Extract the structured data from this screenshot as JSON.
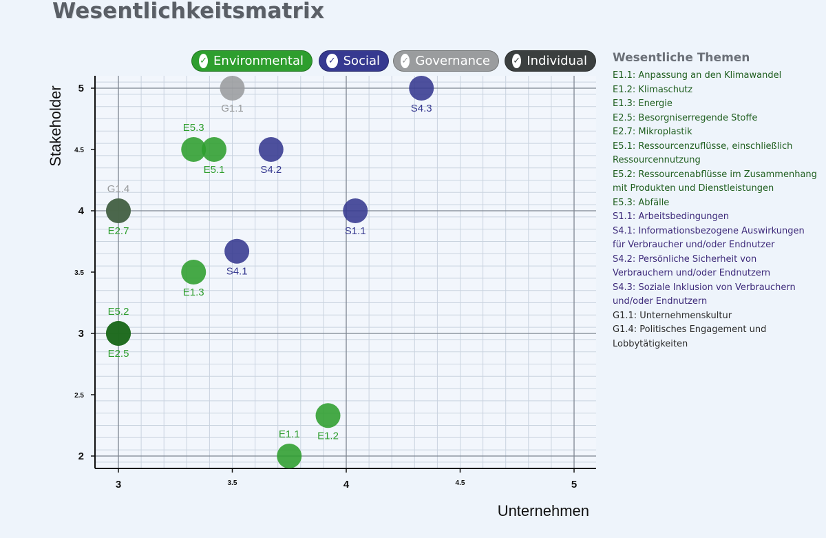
{
  "page": {
    "title": "Wesentlichkeitsmatrix"
  },
  "filters": [
    {
      "label": "Environmental",
      "color": "#2e9e2e",
      "checked": true
    },
    {
      "label": "Social",
      "color": "#363990",
      "checked": true
    },
    {
      "label": "Governance",
      "color": "#9a9c9e",
      "checked": true
    },
    {
      "label": "Individual",
      "color": "#3b3f3f",
      "checked": true
    }
  ],
  "side_legend": {
    "title": "Wesentliche Themen",
    "items": [
      {
        "text": "E1.1: Anpassung an den Klimawandel",
        "color": "#1f5e1f"
      },
      {
        "text": "E1.2: Klimaschutz",
        "color": "#1f5e1f"
      },
      {
        "text": "E1.3: Energie",
        "color": "#1f5e1f"
      },
      {
        "text": "E2.5: Besorgniserregende Stoffe",
        "color": "#1f5e1f"
      },
      {
        "text": "E2.7: Mikroplastik",
        "color": "#1f5e1f"
      },
      {
        "text": "E5.1: Ressourcenzuflüsse, einschließlich Ressourcennutzung",
        "color": "#1f5e1f"
      },
      {
        "text": "E5.2: Ressourcenabflüsse im Zusammenhang mit Produkten und Dienstleistungen",
        "color": "#1f5e1f"
      },
      {
        "text": "E5.3: Abfälle",
        "color": "#1f5e1f"
      },
      {
        "text": "S1.1: Arbeitsbedingungen",
        "color": "#3d2a7a"
      },
      {
        "text": "S4.1: Informationsbezogene Auswirkungen für Verbraucher und/oder Endnutzer",
        "color": "#3d2a7a"
      },
      {
        "text": "S4.2: Persönliche Sicherheit von Verbrauchern und/oder Endnutzern",
        "color": "#3d2a7a"
      },
      {
        "text": "S4.3: Soziale Inklusion von Verbrauchern und/oder Endnutzern",
        "color": "#3d2a7a"
      },
      {
        "text": "G1.1: Unternehmenskultur",
        "color": "#2b2b2b"
      },
      {
        "text": "G1.4: Politisches Engagement und Lobbytätigkeiten",
        "color": "#2b2b2b"
      }
    ]
  },
  "chart_data": {
    "type": "scatter",
    "title": "Wesentlichkeitsmatrix",
    "xlabel": "Unternehmen",
    "ylabel": "Stakeholder",
    "xlim": [
      2.9,
      5.1
    ],
    "ylim": [
      1.95,
      5.05
    ],
    "xticks": [
      {
        "value": 3,
        "label": "3",
        "major": true
      },
      {
        "value": 3.5,
        "label": "3.5",
        "major": false
      },
      {
        "value": 4,
        "label": "4",
        "major": true
      },
      {
        "value": 4.5,
        "label": "4.5",
        "major": false
      },
      {
        "value": 5,
        "label": "5",
        "major": true
      }
    ],
    "yticks": [
      {
        "value": 2,
        "label": "2",
        "major": true
      },
      {
        "value": 2.5,
        "label": "2.5",
        "major": false
      },
      {
        "value": 3,
        "label": "3",
        "major": true
      },
      {
        "value": 3.5,
        "label": "3.5",
        "major": false
      },
      {
        "value": 4,
        "label": "4",
        "major": true
      },
      {
        "value": 4.5,
        "label": "4.5",
        "major": false
      },
      {
        "value": 5,
        "label": "5",
        "major": true
      }
    ],
    "grid": true,
    "legend": "top",
    "series": [
      {
        "name": "Environmental",
        "color": "#2e9e2e",
        "points": [
          {
            "label": "E5.3",
            "x": 3.33,
            "y": 4.5,
            "label_pos": "above"
          },
          {
            "label": "E5.1",
            "x": 3.42,
            "y": 4.5,
            "label_pos": "below"
          },
          {
            "label": "E1.3",
            "x": 3.33,
            "y": 3.5,
            "label_pos": "below"
          },
          {
            "label": "E1.2",
            "x": 3.92,
            "y": 2.33,
            "label_pos": "below"
          },
          {
            "label": "E1.1",
            "x": 3.75,
            "y": 2.0,
            "label_pos": "above"
          }
        ]
      },
      {
        "name": "Social",
        "color": "#363990",
        "points": [
          {
            "label": "S4.3",
            "x": 4.33,
            "y": 5.0,
            "label_pos": "below"
          },
          {
            "label": "S4.2",
            "x": 3.67,
            "y": 4.5,
            "label_pos": "below"
          },
          {
            "label": "S1.1",
            "x": 4.04,
            "y": 4.0,
            "label_pos": "below"
          },
          {
            "label": "S4.1",
            "x": 3.52,
            "y": 3.67,
            "label_pos": "below"
          }
        ]
      },
      {
        "name": "Governance",
        "color": "#9a9c9e",
        "points": [
          {
            "label": "G1.1",
            "x": 3.5,
            "y": 5.0,
            "label_pos": "below"
          },
          {
            "label": "G1.4",
            "x": 3.0,
            "y": 4.0,
            "label_pos": "above"
          }
        ]
      },
      {
        "name": "Individual",
        "color": "#2f6b2f",
        "points": [
          {
            "label": "E2.7",
            "x": 3.0,
            "y": 4.0,
            "label_pos": "below",
            "point_color": "#3f5f3f",
            "label_color": "#2e9e2e"
          },
          {
            "label": "E5.2",
            "x": 3.0,
            "y": 3.0,
            "label_pos": "above",
            "point_color": "#1f6b1f",
            "label_color": "#2e9e2e"
          },
          {
            "label": "E2.5",
            "x": 3.0,
            "y": 3.0,
            "label_pos": "below",
            "point_color": "#1f6b1f",
            "label_color": "#2e9e2e"
          }
        ]
      }
    ]
  }
}
